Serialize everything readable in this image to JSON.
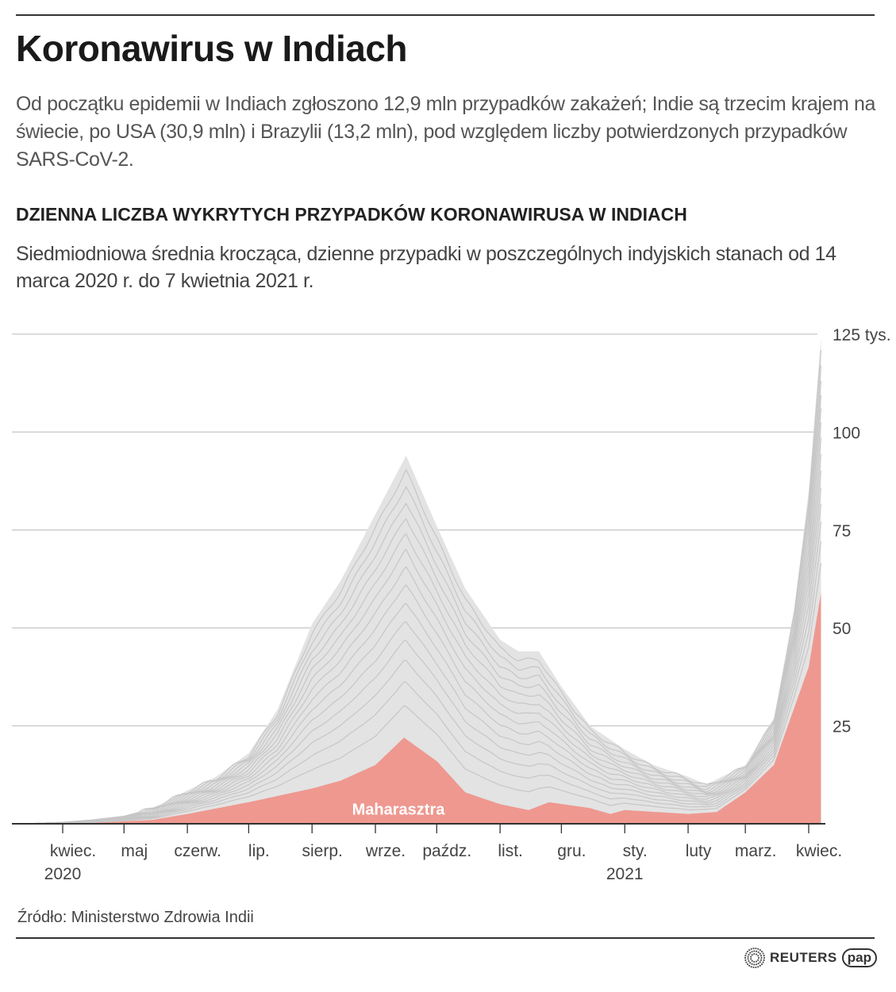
{
  "header": {
    "title": "Koronawirus w Indiach",
    "lead": "Od początku epidemii w Indiach zgłoszono 12,9 mln przypadków zakażeń; Indie są trzecim krajem  na świecie, po USA (30,9 mln) i Brazylii (13,2 mln), pod względem liczby potwierdzonych przypadków SARS-CoV-2."
  },
  "footer": {
    "source": "Źródło: Ministerstwo Zdrowia Indii",
    "logo_reuters": "REUTERS",
    "logo_pap": "pap"
  },
  "chart_data": {
    "type": "area",
    "title": "DZIENNA LICZBA WYKRYTYCH PRZYPADKÓW KORONAWIRUSA W INDIACH",
    "subtitle": "Siedmiodniowa średnia krocząca, dzienne przypadki w poszczególnych indyjskich stanach od 14 marca 2020 r. do 7 kwietnia 2021 r.",
    "ylim": [
      0,
      125
    ],
    "yticks": [
      {
        "v": 25,
        "label": "25"
      },
      {
        "v": 50,
        "label": "50"
      },
      {
        "v": 75,
        "label": "75"
      },
      {
        "v": 100,
        "label": "100"
      },
      {
        "v": 125,
        "label": "125 tys."
      }
    ],
    "xlim": [
      "2020-03-14",
      "2021-04-07"
    ],
    "xticks": [
      {
        "date": "2020-04-01",
        "label": "kwiec.",
        "year": "2020"
      },
      {
        "date": "2020-05-01",
        "label": "maj"
      },
      {
        "date": "2020-06-01",
        "label": "czerw."
      },
      {
        "date": "2020-07-01",
        "label": "lip."
      },
      {
        "date": "2020-08-01",
        "label": "sierp."
      },
      {
        "date": "2020-09-01",
        "label": "wrze."
      },
      {
        "date": "2020-10-01",
        "label": "paźdz."
      },
      {
        "date": "2020-11-01",
        "label": "list."
      },
      {
        "date": "2020-12-01",
        "label": "gru."
      },
      {
        "date": "2021-01-01",
        "label": "sty.",
        "year": "2021"
      },
      {
        "date": "2021-02-01",
        "label": "luty"
      },
      {
        "date": "2021-03-01",
        "label": "marz."
      },
      {
        "date": "2021-04-01",
        "label": "kwiec."
      }
    ],
    "grid": true,
    "colors": {
      "others": "#e3e3e3",
      "state_lines": "#c6c6c6",
      "highlight": "#ee9890"
    },
    "series": [
      {
        "name": "",
        "role": "all states total",
        "unit": "thousands",
        "points": [
          [
            "2020-03-14",
            0
          ],
          [
            "2020-04-01",
            0.4
          ],
          [
            "2020-04-15",
            1
          ],
          [
            "2020-05-01",
            2
          ],
          [
            "2020-05-15",
            4
          ],
          [
            "2020-06-01",
            8.5
          ],
          [
            "2020-06-15",
            12
          ],
          [
            "2020-07-01",
            18
          ],
          [
            "2020-07-15",
            29
          ],
          [
            "2020-08-01",
            51
          ],
          [
            "2020-08-15",
            62
          ],
          [
            "2020-09-01",
            79
          ],
          [
            "2020-09-16",
            94
          ],
          [
            "2020-10-01",
            76
          ],
          [
            "2020-10-15",
            60
          ],
          [
            "2020-11-01",
            47
          ],
          [
            "2020-11-10",
            44
          ],
          [
            "2020-11-20",
            44
          ],
          [
            "2020-12-01",
            35
          ],
          [
            "2020-12-15",
            25
          ],
          [
            "2021-01-01",
            19
          ],
          [
            "2021-01-15",
            15
          ],
          [
            "2021-02-01",
            12
          ],
          [
            "2021-02-10",
            10
          ],
          [
            "2021-03-01",
            15
          ],
          [
            "2021-03-15",
            27
          ],
          [
            "2021-03-25",
            55
          ],
          [
            "2021-04-01",
            85
          ],
          [
            "2021-04-07",
            124
          ]
        ]
      },
      {
        "name": "Maharasztra",
        "unit": "thousands",
        "points": [
          [
            "2020-03-14",
            0
          ],
          [
            "2020-04-15",
            0.2
          ],
          [
            "2020-05-15",
            1
          ],
          [
            "2020-06-01",
            2.5
          ],
          [
            "2020-07-01",
            5.5
          ],
          [
            "2020-08-01",
            9
          ],
          [
            "2020-08-15",
            11
          ],
          [
            "2020-09-01",
            15
          ],
          [
            "2020-09-15",
            22
          ],
          [
            "2020-10-01",
            16
          ],
          [
            "2020-10-15",
            8
          ],
          [
            "2020-11-01",
            5
          ],
          [
            "2020-11-15",
            3.5
          ],
          [
            "2020-11-25",
            5.5
          ],
          [
            "2020-12-15",
            4
          ],
          [
            "2020-12-25",
            2.5
          ],
          [
            "2021-01-01",
            3.5
          ],
          [
            "2021-02-01",
            2.5
          ],
          [
            "2021-02-15",
            3
          ],
          [
            "2021-03-01",
            8
          ],
          [
            "2021-03-15",
            15
          ],
          [
            "2021-04-01",
            40
          ],
          [
            "2021-04-07",
            59
          ]
        ]
      }
    ]
  }
}
